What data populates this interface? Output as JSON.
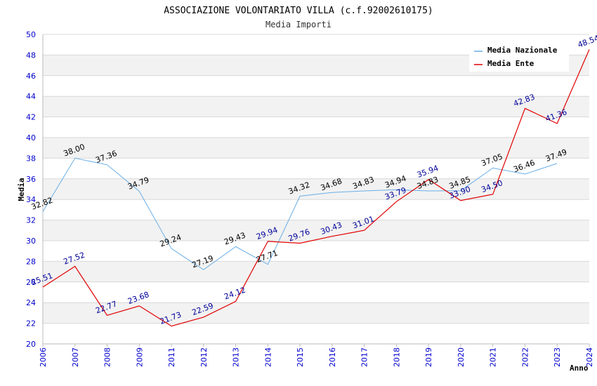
{
  "chart_data": {
    "type": "line",
    "title": "ASSOCIAZIONE VOLONTARIATO VILLA (c.f.92002610175)",
    "subtitle": "Media Importi",
    "xlabel": "Anno",
    "ylabel": "Media",
    "ylim": [
      20,
      50
    ],
    "ytick_step": 2,
    "yticks": [
      "20",
      "22",
      "24",
      "26",
      "28",
      "30",
      "32",
      "34",
      "36",
      "38",
      "40",
      "42",
      "44",
      "46",
      "48",
      "50"
    ],
    "categories": [
      "2006",
      "2007",
      "2008",
      "2009",
      "2011",
      "2012",
      "2013",
      "2014",
      "2015",
      "2016",
      "2017",
      "2018",
      "2019",
      "2020",
      "2021",
      "2022",
      "2023",
      "2024"
    ],
    "legend_position": "top-right",
    "series": [
      {
        "name": "Media Nazionale",
        "color": "#6aaee6",
        "label_color": "#000000",
        "values": [
          32.82,
          38.0,
          37.36,
          34.79,
          29.24,
          27.19,
          29.43,
          27.71,
          34.32,
          34.68,
          34.83,
          34.94,
          34.83,
          34.85,
          37.05,
          36.46,
          37.49,
          null
        ],
        "labels": [
          "32.82",
          "38.00",
          "37.36",
          "34.79",
          "29.24",
          "27.19",
          "29.43",
          "27.71",
          "34.32",
          "34.68",
          "34.83",
          "34.94",
          "34.83",
          "34.85",
          "37.05",
          "36.46",
          "37.49",
          null
        ]
      },
      {
        "name": "Media Ente",
        "color": "#e00000",
        "label_color": "#000099",
        "values": [
          25.51,
          27.52,
          22.77,
          23.68,
          21.73,
          22.59,
          24.12,
          29.94,
          29.76,
          30.43,
          31.01,
          33.79,
          35.94,
          33.9,
          34.5,
          42.83,
          41.36,
          48.54
        ],
        "labels": [
          "25.51",
          "27.52",
          "22.77",
          "23.68",
          "21.73",
          "22.59",
          "24.12",
          "29.94",
          "29.76",
          "30.43",
          "31.01",
          "33.79",
          "35.94",
          "33.90",
          "34.50",
          "42.83",
          "41.36",
          "48.54"
        ]
      }
    ],
    "colors": {
      "band": "#f2f2f2",
      "grid": "#d8d8d8",
      "axis": "#bbbbbb",
      "tick": "#0000cc"
    }
  }
}
